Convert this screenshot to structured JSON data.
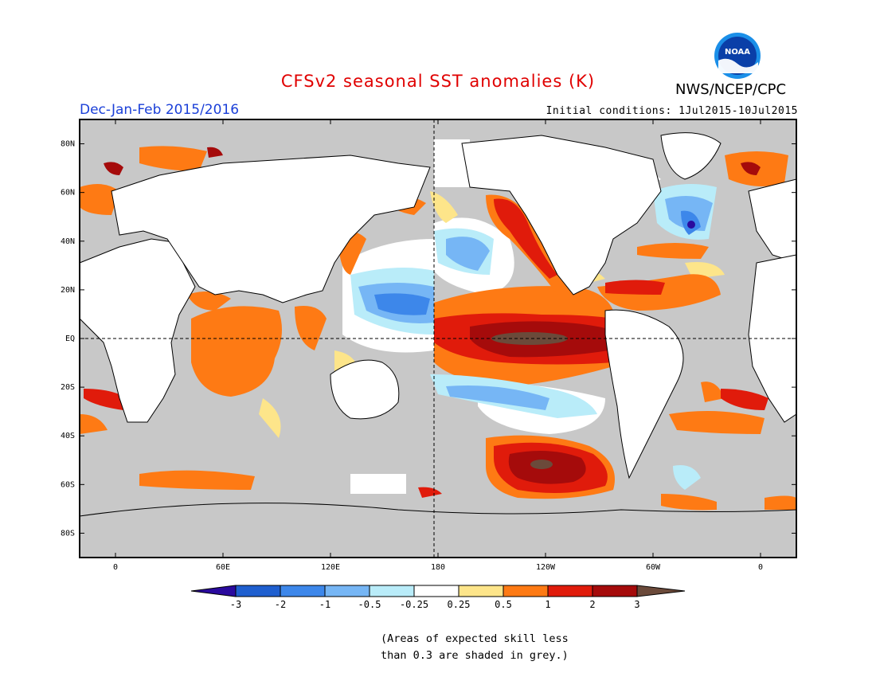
{
  "header": {
    "title": "CFSv2 seasonal SST anomalies (K)",
    "subtitle": "Dec-Jan-Feb 2015/2016",
    "agency": "NWS/NCEP/CPC",
    "initial_conditions": "Initial conditions: 1Jul2015-10Jul2015",
    "logo_text": "NOAA"
  },
  "map": {
    "lat_labels": [
      "80N",
      "60N",
      "40N",
      "20N",
      "EQ",
      "20S",
      "40S",
      "60S",
      "80S"
    ],
    "lon_labels": [
      "0",
      "60E",
      "120E",
      "180",
      "120W",
      "60W",
      "0"
    ],
    "grey_color": "#c8c8c8",
    "land_color": "#ffffff"
  },
  "colorbar": {
    "tick_labels": [
      "-3",
      "-2",
      "-1",
      "-0.5",
      "-0.25",
      "0.25",
      "0.5",
      "1",
      "2",
      "3"
    ],
    "colors": [
      "#2a0a9e",
      "#1f5fcf",
      "#3d87ea",
      "#76b6f5",
      "#b9ecf9",
      "#ffffff",
      "#fde58a",
      "#fe7a14",
      "#e01b0b",
      "#a50b0b",
      "#6b4a3a"
    ]
  },
  "note": {
    "line1": "(Areas of expected skill less",
    "line2": "than 0.3 are shaded in grey.)"
  }
}
